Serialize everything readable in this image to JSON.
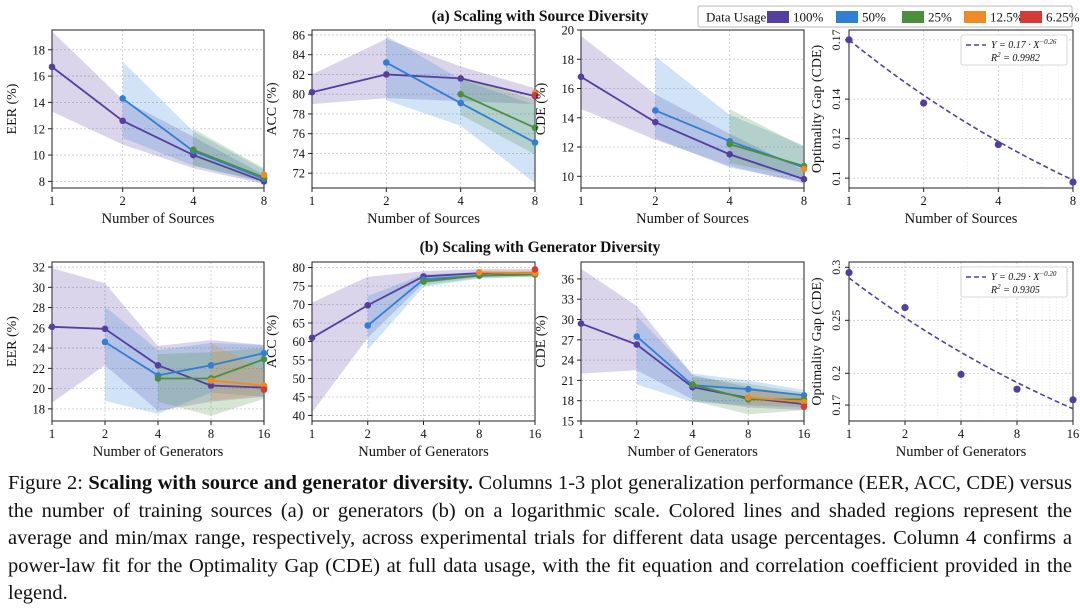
{
  "figure": {
    "title_a": "(a) Scaling with Source Diversity",
    "title_b": "(b) Scaling with Generator Diversity",
    "legend_label": "Data Usage:"
  },
  "colors": {
    "100%": "#553f9e",
    "50%": "#2f7fd6",
    "25%": "#4a8f3c",
    "12.5%": "#ef8a25",
    "6.25%": "#d63a34"
  },
  "caption": {
    "label": "Figure 2: ",
    "bold": "Scaling with source and generator diversity.",
    "text": " Columns 1-3 plot generalization performance (EER, ACC, CDE) versus the number of training sources (a) or generators (b) on a logarithmic scale. Colored lines and shaded regions represent the average and min/max range, respectively, across experimental trials for different data usage percentages. Column 4 confirms a power-law fit for the Optimality Gap (CDE) at full data usage, with the fit equation and correlation coefficient provided in the legend."
  },
  "chart_data": [
    {
      "id": "a-eer",
      "type": "line",
      "title": "",
      "xlabel": "Number of Sources",
      "ylabel": "EER (%)",
      "x": [
        1,
        2,
        4,
        8
      ],
      "xticks": [
        "1",
        "2",
        "4",
        "8"
      ],
      "ylim": [
        7.5,
        19.5
      ],
      "yticks": [
        8,
        10,
        12,
        14,
        16,
        18
      ],
      "series": [
        {
          "name": "100%",
          "values": [
            16.7,
            12.6,
            10.0,
            8.0
          ],
          "lower": [
            13.3,
            10.8,
            9.0,
            7.8
          ],
          "upper": [
            19.4,
            14.2,
            11.4,
            8.5
          ]
        },
        {
          "name": "50%",
          "values": [
            null,
            14.3,
            10.3,
            8.2
          ],
          "lower": [
            null,
            11.3,
            9.2,
            7.9
          ],
          "upper": [
            null,
            17.1,
            11.8,
            8.9
          ]
        },
        {
          "name": "25%",
          "values": [
            null,
            null,
            10.4,
            8.3
          ],
          "lower": [
            null,
            null,
            9.2,
            8.0
          ],
          "upper": [
            null,
            null,
            12.0,
            9.0
          ]
        },
        {
          "name": "12.5%",
          "values": [
            null,
            null,
            null,
            8.5
          ],
          "lower": [
            null,
            null,
            null,
            8.2
          ],
          "upper": [
            null,
            null,
            null,
            8.8
          ]
        }
      ]
    },
    {
      "id": "a-acc",
      "type": "line",
      "title": "",
      "xlabel": "Number of Sources",
      "ylabel": "ACC (%)",
      "x": [
        1,
        2,
        4,
        8
      ],
      "xticks": [
        "1",
        "2",
        "4",
        "8"
      ],
      "ylim": [
        70.5,
        86.5
      ],
      "yticks": [
        72,
        74,
        76,
        78,
        80,
        82,
        84,
        86
      ],
      "series": [
        {
          "name": "100%",
          "values": [
            80.2,
            82.0,
            81.6,
            79.8
          ],
          "lower": [
            79.0,
            79.6,
            79.3,
            79.0
          ],
          "upper": [
            82.0,
            85.6,
            82.8,
            80.6
          ]
        },
        {
          "name": "50%",
          "values": [
            null,
            83.2,
            79.1,
            75.1
          ],
          "lower": [
            null,
            79.4,
            76.8,
            71.0
          ],
          "upper": [
            null,
            85.9,
            81.5,
            78.9
          ]
        },
        {
          "name": "25%",
          "values": [
            null,
            null,
            80.0,
            76.6
          ],
          "lower": [
            null,
            null,
            77.9,
            73.9
          ],
          "upper": [
            null,
            null,
            81.8,
            79.4
          ]
        },
        {
          "name": "12.5%",
          "values": [
            null,
            null,
            null,
            80.1
          ],
          "lower": [
            null,
            null,
            null,
            79.5
          ],
          "upper": [
            null,
            null,
            null,
            80.5
          ]
        },
        {
          "name": "6.25%",
          "values": [
            null,
            null,
            null,
            79.9
          ],
          "lower": [
            null,
            null,
            null,
            79.6
          ],
          "upper": [
            null,
            null,
            null,
            80.2
          ]
        }
      ]
    },
    {
      "id": "a-cde",
      "type": "line",
      "title": "",
      "xlabel": "Number of Sources",
      "ylabel": "CDE (%)",
      "x": [
        1,
        2,
        4,
        8
      ],
      "xticks": [
        "1",
        "2",
        "4",
        "8"
      ],
      "ylim": [
        9.2,
        20.0
      ],
      "yticks": [
        10,
        12,
        14,
        16,
        18,
        20
      ],
      "series": [
        {
          "name": "100%",
          "values": [
            16.8,
            13.7,
            11.5,
            9.8
          ],
          "lower": [
            14.6,
            12.5,
            10.7,
            9.5
          ],
          "upper": [
            19.6,
            15.6,
            12.9,
            10.4
          ]
        },
        {
          "name": "50%",
          "values": [
            null,
            14.5,
            12.4,
            10.6
          ],
          "lower": [
            null,
            12.6,
            10.6,
            9.6
          ],
          "upper": [
            null,
            18.2,
            14.2,
            12.1
          ]
        },
        {
          "name": "25%",
          "values": [
            null,
            null,
            12.2,
            10.7
          ],
          "lower": [
            null,
            null,
            10.9,
            9.9
          ],
          "upper": [
            null,
            null,
            14.6,
            12.0
          ]
        },
        {
          "name": "12.5%",
          "values": [
            null,
            null,
            null,
            10.5
          ],
          "lower": [
            null,
            null,
            null,
            10.2
          ],
          "upper": [
            null,
            null,
            null,
            11.0
          ]
        }
      ]
    },
    {
      "id": "a-gap",
      "type": "scatter",
      "title": "",
      "xlabel": "Number of Sources",
      "ylabel": "Optimality Gap (CDE)",
      "x": [
        1,
        2,
        4,
        8
      ],
      "xticks": [
        "1",
        "2",
        "4",
        "8"
      ],
      "ylim": [
        0.095,
        0.175
      ],
      "yticks": [
        0.1,
        0.12,
        0.14,
        0.17
      ],
      "yticklabels": [
        "0.1",
        "0.12",
        "0.14",
        "0.17"
      ],
      "points": [
        0.17,
        0.138,
        0.117,
        0.098
      ],
      "fit": {
        "coef": 0.17,
        "exp": -0.26
      },
      "legend": {
        "eq": "Y = 0.17 · X",
        "exp": "−0.26",
        "r2": "R",
        "r2v": " = 0.9982"
      }
    },
    {
      "id": "b-eer",
      "type": "line",
      "title": "",
      "xlabel": "Number of Generators",
      "ylabel": "EER (%)",
      "x": [
        1,
        2,
        4,
        8,
        16
      ],
      "xticks": [
        "1",
        "2",
        "4",
        "8",
        "16"
      ],
      "ylim": [
        16.8,
        32.5
      ],
      "yticks": [
        18,
        20,
        22,
        24,
        26,
        28,
        30,
        32
      ],
      "series": [
        {
          "name": "100%",
          "values": [
            26.1,
            25.9,
            22.3,
            20.3,
            20.1
          ],
          "lower": [
            18.6,
            22.3,
            17.8,
            18.7,
            19.2
          ],
          "upper": [
            31.9,
            30.4,
            24.2,
            24.8,
            24.3
          ]
        },
        {
          "name": "50%",
          "values": [
            null,
            24.6,
            21.3,
            22.3,
            23.5
          ],
          "lower": [
            null,
            18.8,
            17.5,
            19.6,
            19.2
          ],
          "upper": [
            null,
            28.1,
            23.8,
            24.5,
            24.3
          ]
        },
        {
          "name": "25%",
          "values": [
            null,
            null,
            21.0,
            21.0,
            22.9
          ],
          "lower": [
            null,
            null,
            18.7,
            17.3,
            19.0
          ],
          "upper": [
            null,
            null,
            23.4,
            23.6,
            24.0
          ]
        },
        {
          "name": "12.5%",
          "values": [
            null,
            null,
            null,
            20.8,
            20.3
          ],
          "lower": [
            null,
            null,
            null,
            18.8,
            19.4
          ],
          "upper": [
            null,
            null,
            null,
            24.5,
            21.8
          ]
        },
        {
          "name": "6.25%",
          "values": [
            null,
            null,
            null,
            null,
            19.9
          ],
          "lower": [
            null,
            null,
            null,
            null,
            19.5
          ],
          "upper": [
            null,
            null,
            null,
            null,
            20.4
          ]
        }
      ]
    },
    {
      "id": "b-acc",
      "type": "line",
      "title": "",
      "xlabel": "Number of Generators",
      "ylabel": "ACC (%)",
      "x": [
        1,
        2,
        4,
        8,
        16
      ],
      "xticks": [
        "1",
        "2",
        "4",
        "8",
        "16"
      ],
      "ylim": [
        38.5,
        81.5
      ],
      "yticks": [
        40,
        45,
        50,
        55,
        60,
        65,
        70,
        75,
        80
      ],
      "series": [
        {
          "name": "100%",
          "values": [
            61.0,
            69.8,
            77.6,
            78.5,
            78.6
          ],
          "lower": [
            40.8,
            61.0,
            75.8,
            77.5,
            77.8
          ],
          "upper": [
            70.5,
            77.5,
            79.0,
            79.6,
            79.6
          ]
        },
        {
          "name": "50%",
          "values": [
            null,
            64.3,
            76.8,
            77.8,
            78.2
          ],
          "lower": [
            null,
            57.8,
            74.8,
            77.0,
            77.6
          ],
          "upper": [
            null,
            72.3,
            78.2,
            78.7,
            78.8
          ]
        },
        {
          "name": "25%",
          "values": [
            null,
            null,
            76.2,
            77.9,
            78.1
          ],
          "lower": [
            null,
            null,
            75.2,
            77.2,
            77.5
          ],
          "upper": [
            null,
            null,
            77.5,
            78.6,
            78.8
          ]
        },
        {
          "name": "12.5%",
          "values": [
            null,
            null,
            null,
            78.7,
            78.5
          ],
          "lower": [
            null,
            null,
            null,
            78.2,
            78.0
          ],
          "upper": [
            null,
            null,
            null,
            79.2,
            79.2
          ]
        },
        {
          "name": "6.25%",
          "values": [
            null,
            null,
            null,
            null,
            79.5
          ],
          "lower": [
            null,
            null,
            null,
            null,
            79.2
          ],
          "upper": [
            null,
            null,
            null,
            null,
            79.8
          ]
        }
      ]
    },
    {
      "id": "b-cde",
      "type": "line",
      "title": "",
      "xlabel": "Number of Generators",
      "ylabel": "CDE (%)",
      "x": [
        1,
        2,
        4,
        8,
        16
      ],
      "xticks": [
        "1",
        "2",
        "4",
        "8",
        "16"
      ],
      "ylim": [
        15.0,
        38.5
      ],
      "yticks": [
        15,
        18,
        21,
        24,
        27,
        30,
        33,
        36
      ],
      "series": [
        {
          "name": "100%",
          "values": [
            29.4,
            26.3,
            20.0,
            18.4,
            17.5
          ],
          "lower": [
            22.0,
            22.5,
            18.2,
            17.0,
            16.6
          ],
          "upper": [
            37.5,
            32.0,
            21.8,
            20.0,
            18.8
          ]
        },
        {
          "name": "50%",
          "values": [
            null,
            27.5,
            20.3,
            19.7,
            18.8
          ],
          "lower": [
            null,
            20.4,
            17.8,
            17.3,
            17.0
          ],
          "upper": [
            null,
            30.5,
            22.0,
            21.0,
            19.6
          ]
        },
        {
          "name": "25%",
          "values": [
            null,
            null,
            20.4,
            18.2,
            18.2
          ],
          "lower": [
            null,
            null,
            18.0,
            16.0,
            16.6
          ],
          "upper": [
            null,
            null,
            21.5,
            20.5,
            19.2
          ]
        },
        {
          "name": "12.5%",
          "values": [
            null,
            null,
            null,
            18.5,
            17.8
          ],
          "lower": [
            null,
            null,
            null,
            17.4,
            17.2
          ],
          "upper": [
            null,
            null,
            null,
            19.7,
            18.5
          ]
        },
        {
          "name": "6.25%",
          "values": [
            null,
            null,
            null,
            null,
            17.1
          ],
          "lower": [
            null,
            null,
            null,
            null,
            16.8
          ],
          "upper": [
            null,
            null,
            null,
            null,
            17.6
          ]
        }
      ]
    },
    {
      "id": "b-gap",
      "type": "scatter",
      "title": "",
      "xlabel": "Number of Generators",
      "ylabel": "Optimality Gap (CDE)",
      "x": [
        1,
        2,
        4,
        8,
        16
      ],
      "xticks": [
        "1",
        "2",
        "4",
        "8",
        "16"
      ],
      "ylim": [
        0.155,
        0.305
      ],
      "yticks": [
        0.17,
        0.2,
        0.25,
        0.3
      ],
      "yticklabels": [
        "0.17",
        "0.2",
        "0.25",
        "0.3"
      ],
      "points": [
        0.295,
        0.262,
        0.199,
        0.185,
        0.175
      ],
      "fit": {
        "coef": 0.29,
        "exp": -0.2
      },
      "legend": {
        "eq": "Y = 0.29 · X",
        "exp": "−0.20",
        "r2": "R",
        "r2v": " = 0.9305"
      }
    }
  ],
  "legend_items": [
    "100%",
    "50%",
    "25%",
    "12.5%",
    "6.25%"
  ]
}
